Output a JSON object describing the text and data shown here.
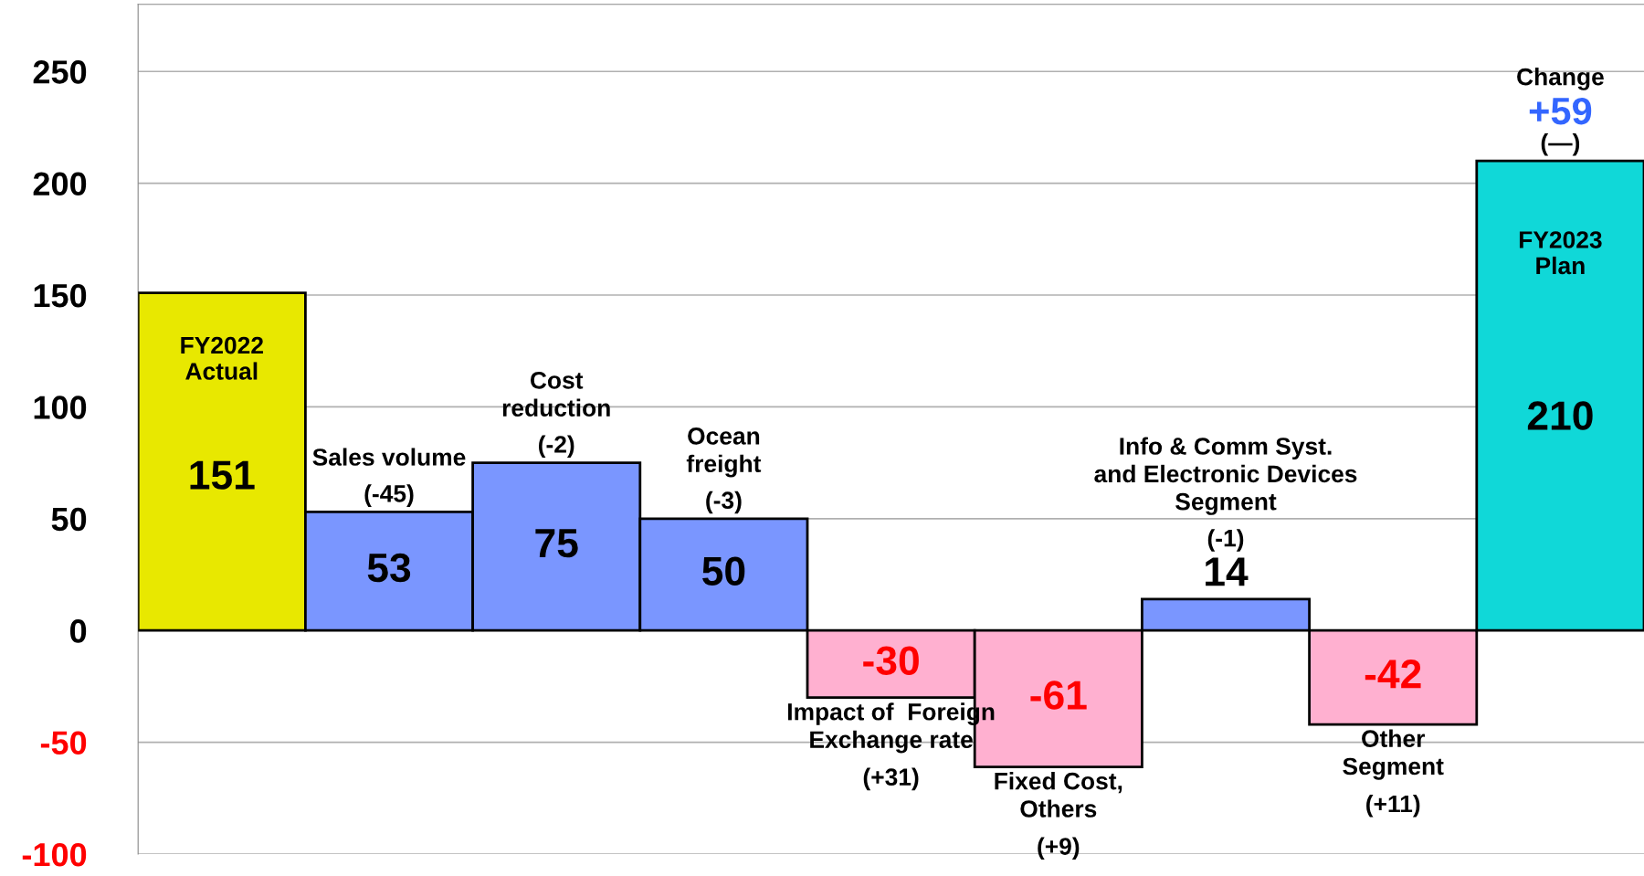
{
  "chart_data": {
    "type": "bar",
    "categories": [
      "FY2022\nActual",
      "Sales volume",
      "Cost\nreduction",
      "Ocean\nfreight",
      "Impact of  Foreign\nExchange rate",
      "Fixed Cost,\nOthers",
      "Info & Comm Syst.\nand Electronic Devices\nSegment",
      "Other\nSegment",
      "FY2023\nPlan"
    ],
    "values": [
      151,
      53,
      75,
      50,
      -30,
      -61,
      14,
      -42,
      210
    ],
    "colors": [
      "#e8e800",
      "#7a96ff",
      "#7a96ff",
      "#7a96ff",
      "#ffb0d0",
      "#ffb0d0",
      "#7a96ff",
      "#ffb0d0",
      "#10d8d8"
    ],
    "data_labels": true,
    "ylim": [
      -100,
      280
    ],
    "yticks": [
      -100,
      -50,
      0,
      50,
      100,
      150,
      200,
      250
    ],
    "tick_labels": "y",
    "grid": "y",
    "annotations": [
      "(-45)",
      "(-2)",
      "(-3)",
      "(+31)",
      "(+9)",
      "(-1)",
      "(+11)",
      "Change",
      "+59",
      "(—)"
    ]
  }
}
